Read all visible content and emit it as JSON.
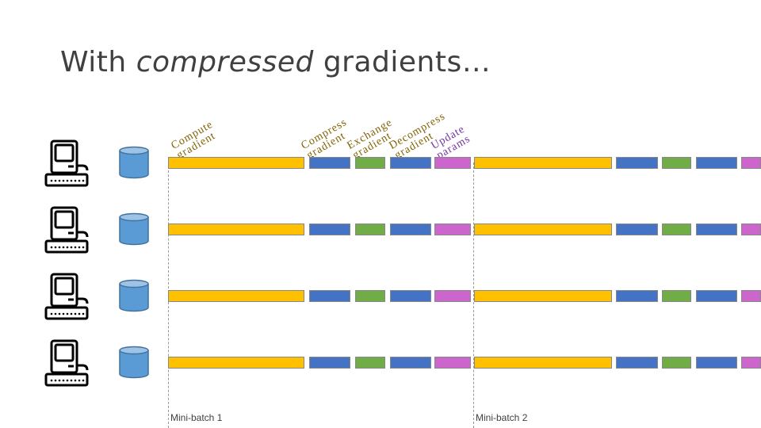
{
  "title": {
    "prefix": "With ",
    "italic": "compressed",
    "suffix": " gradients…"
  },
  "steps": [
    {
      "line1": "Compute",
      "line2": "gradient",
      "color": "#806000"
    },
    {
      "line1": "Compress",
      "line2": "gradient",
      "color": "#806000"
    },
    {
      "line1": "Exchange",
      "line2": "gradient",
      "color": "#806000"
    },
    {
      "line1": "Decompress",
      "line2": "gradient",
      "color": "#806000"
    },
    {
      "line1": "Update",
      "line2": "params",
      "color": "#7030a0"
    }
  ],
  "minibatches": [
    "Mini-batch 1",
    "Mini-batch 2"
  ],
  "colors": {
    "compute": "#ffc000",
    "compress": "#4472c4",
    "exchange": "#70ad47",
    "update": "#cc66cc"
  },
  "workers": 4,
  "icons": [
    "computer-icon",
    "database-icon"
  ]
}
